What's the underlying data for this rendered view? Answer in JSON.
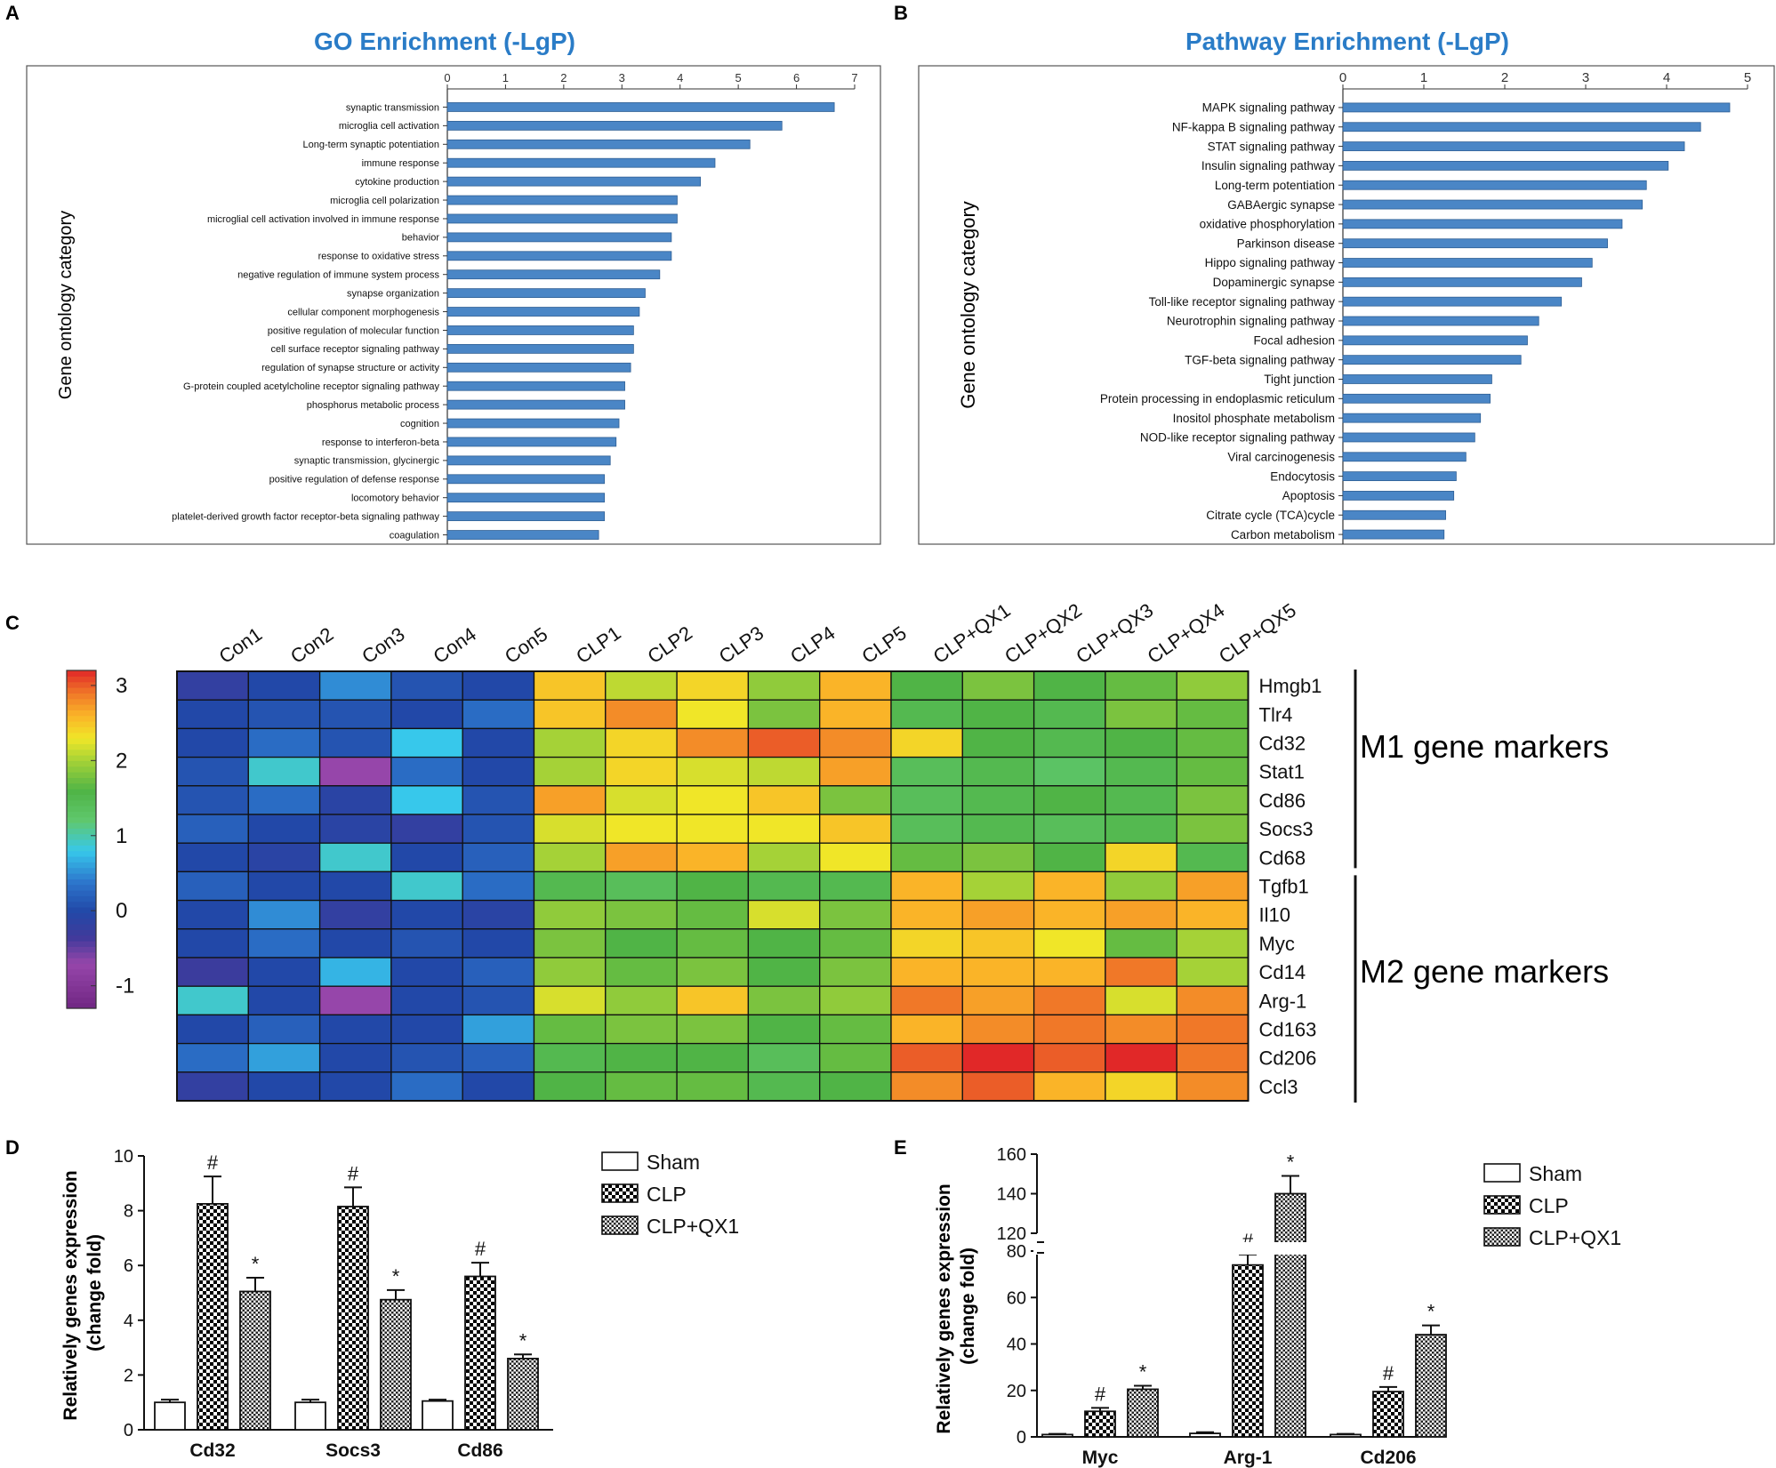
{
  "panels": {
    "a": "A",
    "b": "B",
    "c": "C",
    "d": "D",
    "e": "E"
  },
  "chart_data": [
    {
      "id": "A",
      "type": "bar",
      "orientation": "horizontal",
      "title": "GO Enrichment (-LgP)",
      "ylabel": "Gene ontology category",
      "xlim": [
        0,
        7
      ],
      "xticks": [
        0,
        1,
        2,
        3,
        4,
        5,
        6,
        7
      ],
      "categories": [
        "synaptic transmission",
        "microglia cell activation",
        "Long-term synaptic potentiation",
        "immune response",
        "cytokine production",
        "microglia cell polarization",
        "microglial cell activation involved in immune response",
        "behavior",
        "response to oxidative stress",
        "negative regulation of immune system process",
        "synapse organization",
        "cellular component morphogenesis",
        "positive regulation of molecular function",
        "cell surface receptor signaling pathway",
        "regulation of synapse structure or activity",
        "G-protein coupled acetylcholine receptor signaling pathway",
        "phosphorus metabolic process",
        "cognition",
        "response to interferon-beta",
        "synaptic transmission, glycinergic",
        "positive regulation of defense response",
        "locomotory behavior",
        "platelet-derived growth factor receptor-beta signaling pathway",
        "coagulation"
      ],
      "values": [
        6.65,
        5.75,
        5.2,
        4.6,
        4.35,
        3.95,
        3.95,
        3.85,
        3.85,
        3.65,
        3.4,
        3.3,
        3.2,
        3.2,
        3.15,
        3.05,
        3.05,
        2.95,
        2.9,
        2.8,
        2.7,
        2.7,
        2.7,
        2.6
      ]
    },
    {
      "id": "B",
      "type": "bar",
      "orientation": "horizontal",
      "title": "Pathway Enrichment (-LgP)",
      "ylabel": "Gene ontology category",
      "xlim": [
        0,
        5
      ],
      "xticks": [
        0,
        1,
        2,
        3,
        4,
        5
      ],
      "categories": [
        "MAPK signaling pathway",
        "NF-kappa B signaling pathway",
        "STAT signaling pathway",
        "Insulin signaling pathway",
        "Long-term potentiation",
        "GABAergic synapse",
        "oxidative phosphorylation",
        "Parkinson disease",
        "Hippo signaling pathway",
        "Dopaminergic synapse",
        "Toll-like receptor signaling pathway",
        "Neurotrophin signaling pathway",
        "Focal adhesion",
        "TGF-beta signaling pathway",
        "Tight junction",
        "Protein processing in endoplasmic reticulum",
        "Inositol phosphate metabolism",
        "NOD-like receptor signaling pathway",
        "Viral carcinogenesis",
        "Endocytosis",
        "Apoptosis",
        "Citrate cycle (TCA)cycle",
        "Carbon metabolism"
      ],
      "values": [
        4.78,
        4.42,
        4.22,
        4.02,
        3.75,
        3.7,
        3.45,
        3.27,
        3.08,
        2.95,
        2.7,
        2.42,
        2.28,
        2.2,
        1.84,
        1.82,
        1.7,
        1.63,
        1.52,
        1.4,
        1.37,
        1.27,
        1.25
      ]
    },
    {
      "id": "C",
      "type": "heatmap",
      "columns": [
        "Con1",
        "Con2",
        "Con3",
        "Con4",
        "Con5",
        "CLP1",
        "CLP2",
        "CLP3",
        "CLP4",
        "CLP5",
        "CLP+QX1",
        "CLP+QX2",
        "CLP+QX3",
        "CLP+QX4",
        "CLP+QX5"
      ],
      "rows": [
        "Hmgb1",
        "Tlr4",
        "Cd32",
        "Stat1",
        "Cd86",
        "Socs3",
        "Cd68",
        "Tgfb1",
        "Il10",
        "Myc",
        "Cd14",
        "Arg-1",
        "Cd163",
        "Cd206",
        "Ccl3"
      ],
      "groups": [
        {
          "label": "M1 gene markers",
          "rows": [
            "Hmgb1",
            "Tlr4",
            "Cd32",
            "Stat1",
            "Cd86",
            "Socs3",
            "Cd68"
          ]
        },
        {
          "label": "M2 gene markers",
          "rows": [
            "Tgfb1",
            "Il10",
            "Myc",
            "Cd14",
            "Arg-1",
            "Cd163",
            "Cd206",
            "Ccl3"
          ]
        }
      ],
      "scale": {
        "min": -1.3,
        "max": 3.2,
        "ticks": [
          3,
          2,
          1,
          0,
          -1
        ]
      },
      "values": [
        [
          -0.2,
          0.0,
          0.5,
          0.1,
          0.0,
          2.5,
          2.1,
          2.4,
          1.9,
          2.6,
          1.6,
          1.8,
          1.6,
          1.7,
          1.9
        ],
        [
          0.0,
          0.1,
          0.1,
          0.0,
          0.3,
          2.5,
          2.8,
          2.3,
          1.8,
          2.6,
          1.5,
          1.6,
          1.5,
          1.8,
          1.7
        ],
        [
          0.0,
          0.3,
          0.1,
          0.8,
          0.0,
          2.0,
          2.4,
          2.8,
          3.0,
          2.8,
          2.4,
          1.6,
          1.5,
          1.6,
          1.7
        ],
        [
          0.1,
          0.9,
          -0.7,
          0.3,
          0.0,
          2.0,
          2.4,
          2.2,
          2.1,
          2.7,
          1.4,
          1.5,
          1.3,
          1.5,
          1.7
        ],
        [
          0.1,
          0.3,
          -0.1,
          0.8,
          0.1,
          2.7,
          2.2,
          2.3,
          2.5,
          1.8,
          1.4,
          1.5,
          1.6,
          1.5,
          1.8
        ],
        [
          0.2,
          0.0,
          -0.1,
          -0.2,
          0.1,
          2.2,
          2.3,
          2.3,
          2.3,
          2.5,
          1.4,
          1.5,
          1.4,
          1.5,
          1.8
        ],
        [
          0.0,
          -0.1,
          0.9,
          0.0,
          0.2,
          2.0,
          2.7,
          2.6,
          2.0,
          2.3,
          1.7,
          1.8,
          1.6,
          2.4,
          1.5
        ],
        [
          0.2,
          0.0,
          0.0,
          0.9,
          0.3,
          1.5,
          1.4,
          1.6,
          1.5,
          1.5,
          2.6,
          2.0,
          2.6,
          1.9,
          2.7
        ],
        [
          0.0,
          0.5,
          -0.2,
          0.0,
          -0.1,
          1.9,
          1.8,
          1.7,
          2.2,
          1.8,
          2.6,
          2.7,
          2.6,
          2.7,
          2.6
        ],
        [
          0.0,
          0.3,
          0.0,
          0.1,
          0.0,
          1.8,
          1.6,
          1.7,
          1.6,
          1.7,
          2.4,
          2.5,
          2.3,
          1.7,
          2.0
        ],
        [
          -0.3,
          0.0,
          0.7,
          0.0,
          0.2,
          1.9,
          1.7,
          1.8,
          1.6,
          1.8,
          2.6,
          2.6,
          2.6,
          2.9,
          2.0
        ],
        [
          0.9,
          0.0,
          -0.7,
          0.0,
          0.1,
          2.2,
          1.9,
          2.5,
          1.8,
          1.9,
          2.9,
          2.7,
          2.9,
          2.2,
          2.8
        ],
        [
          0.0,
          0.2,
          0.0,
          0.0,
          0.6,
          1.7,
          1.8,
          1.8,
          1.6,
          1.7,
          2.6,
          2.8,
          2.9,
          2.8,
          2.9
        ],
        [
          0.3,
          0.6,
          0.0,
          0.1,
          0.2,
          1.5,
          1.6,
          1.6,
          1.4,
          1.7,
          3.0,
          3.2,
          3.0,
          3.2,
          2.9
        ],
        [
          -0.2,
          0.0,
          0.0,
          0.3,
          0.0,
          1.6,
          1.7,
          1.7,
          1.5,
          1.6,
          2.8,
          3.0,
          2.6,
          2.4,
          2.8
        ]
      ]
    },
    {
      "id": "D",
      "type": "bar",
      "ylabel": "Relatively genes expression (change fold)",
      "ylim": [
        0,
        10
      ],
      "yticks": [
        0,
        2,
        4,
        6,
        8,
        10
      ],
      "categories": [
        "Cd32",
        "Socs3",
        "Cd86"
      ],
      "series": [
        {
          "name": "Sham",
          "values": [
            1.0,
            1.0,
            1.05
          ],
          "errors": [
            0.1,
            0.1,
            0.05
          ],
          "marks": [
            "",
            "",
            ""
          ]
        },
        {
          "name": "CLP",
          "values": [
            8.25,
            8.15,
            5.6
          ],
          "errors": [
            1.0,
            0.7,
            0.5
          ],
          "marks": [
            "#",
            "#",
            "#"
          ]
        },
        {
          "name": "CLP+QX1",
          "values": [
            5.05,
            4.75,
            2.6
          ],
          "errors": [
            0.5,
            0.35,
            0.15
          ],
          "marks": [
            "*",
            "*",
            "*"
          ]
        }
      ]
    },
    {
      "id": "E",
      "type": "bar",
      "ylabel": "Relatively genes expression (change fold)",
      "ylim": [
        0,
        160
      ],
      "yticks": [
        0,
        20,
        40,
        60,
        80,
        120,
        140,
        160
      ],
      "axis_break": [
        80,
        120
      ],
      "categories": [
        "Myc",
        "Arg-1",
        "Cd206"
      ],
      "series": [
        {
          "name": "Sham",
          "values": [
            1.0,
            1.5,
            1.0
          ],
          "errors": [
            0.3,
            0.5,
            0.3
          ],
          "marks": [
            "",
            "",
            ""
          ]
        },
        {
          "name": "CLP",
          "values": [
            11,
            74,
            19.5
          ],
          "errors": [
            1.5,
            4.5,
            2.0
          ],
          "marks": [
            "#",
            "#",
            "#"
          ]
        },
        {
          "name": "CLP+QX1",
          "values": [
            20.5,
            140,
            44
          ],
          "errors": [
            1.5,
            9,
            4
          ],
          "marks": [
            "*",
            "*",
            "*"
          ]
        }
      ]
    }
  ]
}
